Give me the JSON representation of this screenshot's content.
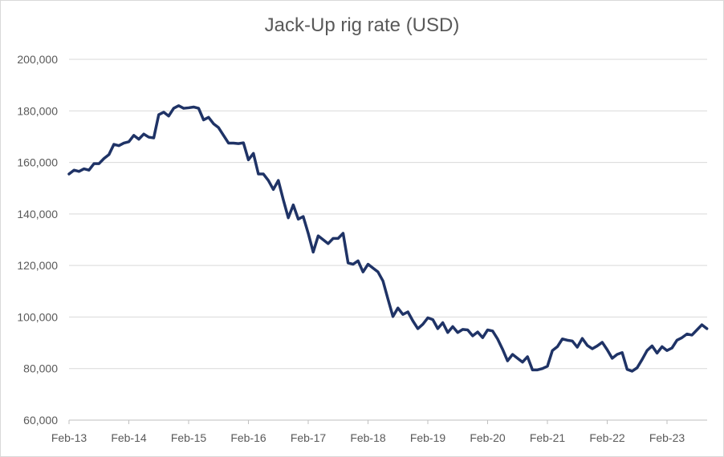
{
  "chart_data": {
    "type": "line",
    "title": "Jack-Up rig rate (USD)",
    "xlabel": "",
    "ylabel": "",
    "ylim": [
      60000,
      200000
    ],
    "yticks": [
      60000,
      80000,
      100000,
      120000,
      140000,
      160000,
      180000,
      200000
    ],
    "ytick_labels": [
      "60,000",
      "80,000",
      "100,000",
      "120,000",
      "140,000",
      "160,000",
      "180,000",
      "200,000"
    ],
    "xtick_labels": [
      "Feb-13",
      "Feb-14",
      "Feb-15",
      "Feb-16",
      "Feb-17",
      "Feb-18",
      "Feb-19",
      "Feb-20",
      "Feb-21",
      "Feb-22",
      "Feb-23"
    ],
    "x_start": "Feb-13",
    "x_end": "Sep-23",
    "grid": true,
    "legend": "none",
    "line_color": "#1f3366",
    "series": [
      {
        "values": [
          155500,
          157000,
          156500,
          157500,
          157000,
          159500,
          159500,
          161500,
          163000,
          167000,
          166500,
          167500,
          168000,
          170500,
          169000,
          171000,
          169800,
          169500,
          178500,
          179500,
          178000,
          181000,
          182000,
          181000,
          181200,
          181500,
          181000,
          176500,
          177500,
          175000,
          173500,
          170500,
          167500,
          167500,
          167300,
          167600,
          161000,
          163500,
          155500,
          155500,
          153000,
          149500,
          153000,
          145500,
          138500,
          143500,
          138000,
          139000,
          132500,
          125200,
          131500,
          130000,
          128500,
          130500,
          130500,
          132500,
          121000,
          120500,
          121800,
          117500,
          120500,
          119000,
          117500,
          114000,
          107000,
          100200,
          103500,
          101000,
          102000,
          98500,
          95500,
          97200,
          99700,
          99000,
          95500,
          97800,
          94000,
          96300,
          94000,
          95200,
          95000,
          92700,
          94200,
          92000,
          95000,
          94600,
          91500,
          87500,
          83000,
          85500,
          84000,
          82500,
          84600,
          79500,
          79500,
          80000,
          80900,
          87000,
          88500,
          91500,
          91000,
          90700,
          88300,
          91700,
          89000,
          87700,
          88800,
          90200,
          87300,
          84000,
          85500,
          86200,
          79700,
          79000,
          80300,
          83500,
          87000,
          88800,
          86000,
          88500,
          87000,
          88000,
          91000,
          92000,
          93400,
          93000,
          95000,
          97000,
          95500
        ]
      }
    ]
  }
}
